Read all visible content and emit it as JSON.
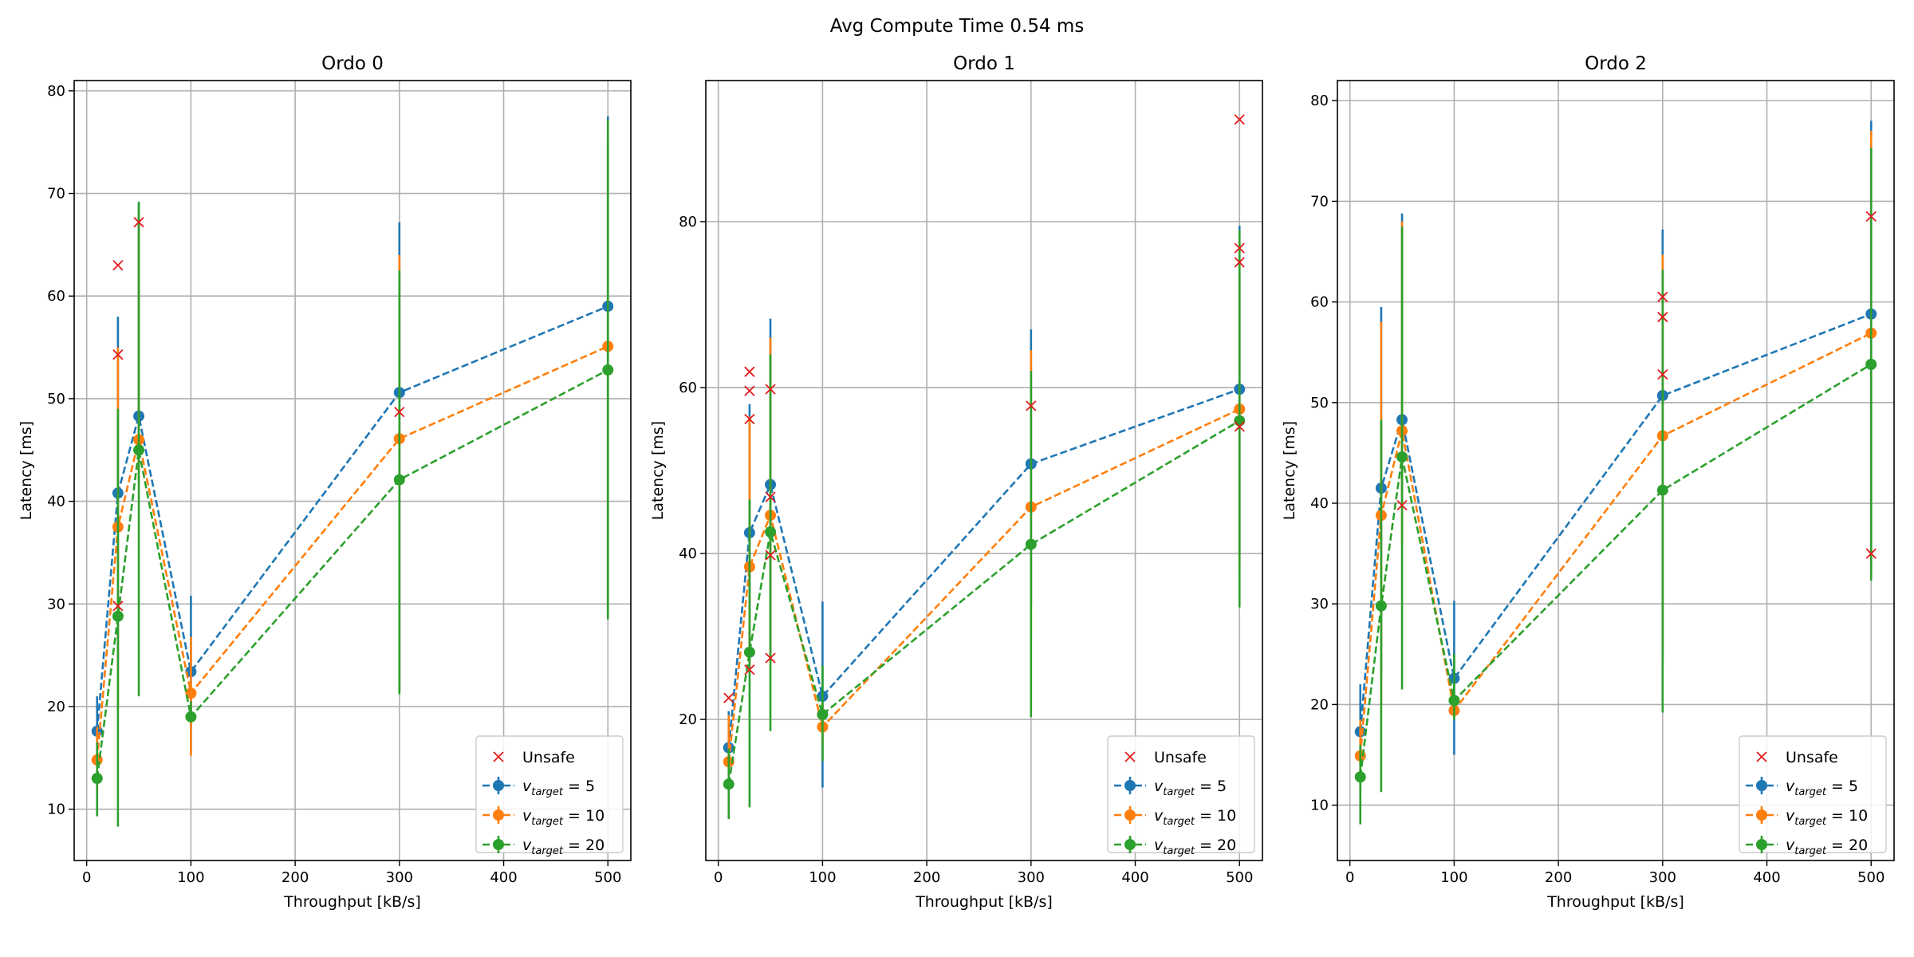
{
  "figure": {
    "suptitle": "Avg Compute Time 0.54 ms"
  },
  "legend": {
    "unsafe_label": "Unsafe",
    "series_prefix": "v",
    "series_subscript": "target",
    "series_eq": " = "
  },
  "colors": {
    "v5": "#1f77b4",
    "v10": "#ff7f0e",
    "v20": "#2ca02c",
    "unsafe": "#e31a1c"
  },
  "chart_data": [
    {
      "type": "line",
      "title": "Ordo 0",
      "xlabel": "Throughput [kB/s]",
      "ylabel": "Latency [ms]",
      "xlim": [
        -12,
        522
      ],
      "ylim": [
        5,
        81
      ],
      "xticks": [
        0,
        100,
        200,
        300,
        400,
        500
      ],
      "yticks": [
        10,
        20,
        30,
        40,
        50,
        60,
        70,
        80
      ],
      "grid": true,
      "legend_position": "lower-right",
      "x": [
        10,
        30,
        50,
        100,
        300,
        500
      ],
      "series": [
        {
          "name": "v_target = 5",
          "color": "#1f77b4",
          "values": [
            17.6,
            40.8,
            48.3,
            23.4,
            50.6,
            59.0
          ],
          "err_lo": [
            15.0,
            23.5,
            44.0,
            15.5,
            21.5,
            29.0
          ],
          "err_hi": [
            21.0,
            58.0,
            69.0,
            30.8,
            67.2,
            77.5
          ]
        },
        {
          "name": "v_target = 10",
          "color": "#ff7f0e",
          "values": [
            14.8,
            37.5,
            46.0,
            21.3,
            46.1,
            55.1
          ],
          "err_lo": [
            12.0,
            20.0,
            42.0,
            15.2,
            21.5,
            29.0
          ],
          "err_hi": [
            18.0,
            55.0,
            68.0,
            26.8,
            64.0,
            75.0
          ]
        },
        {
          "name": "v_target = 20",
          "color": "#2ca02c",
          "values": [
            13.0,
            28.8,
            45.0,
            19.0,
            42.1,
            52.8
          ],
          "err_lo": [
            9.3,
            8.3,
            21.0,
            18.5,
            21.2,
            28.5
          ],
          "err_hi": [
            16.5,
            49.0,
            69.2,
            20.5,
            62.5,
            77.2
          ]
        }
      ],
      "unsafe": {
        "name": "Unsafe",
        "x": [
          30,
          30,
          30,
          50,
          300
        ],
        "y": [
          63.0,
          54.3,
          29.8,
          67.2,
          48.7
        ]
      }
    },
    {
      "type": "line",
      "title": "Ordo 1",
      "xlabel": "Throughput [kB/s]",
      "ylabel": "Latency [ms]",
      "xlim": [
        -12,
        522
      ],
      "ylim": [
        3,
        97
      ],
      "xticks": [
        0,
        100,
        200,
        300,
        400,
        500
      ],
      "yticks": [
        20,
        40,
        60,
        80
      ],
      "grid": true,
      "legend_position": "lower-right",
      "x": [
        10,
        30,
        50,
        100,
        300,
        500
      ],
      "series": [
        {
          "name": "v_target = 5",
          "color": "#1f77b4",
          "values": [
            16.6,
            42.5,
            48.3,
            22.8,
            50.8,
            59.8
          ],
          "err_lo": [
            14.0,
            27.0,
            29.0,
            11.8,
            34.0,
            40.0
          ],
          "err_hi": [
            21.0,
            58.0,
            68.3,
            34.2,
            67.0,
            79.5
          ]
        },
        {
          "name": "v_target = 10",
          "color": "#ff7f0e",
          "values": [
            14.9,
            38.4,
            44.6,
            19.1,
            45.6,
            57.4
          ],
          "err_lo": [
            13.0,
            26.0,
            27.0,
            17.0,
            30.0,
            38.0
          ],
          "err_hi": [
            20.5,
            56.5,
            66.0,
            22.0,
            64.5,
            78.0
          ]
        },
        {
          "name": "v_target = 20",
          "color": "#2ca02c",
          "values": [
            12.2,
            28.1,
            42.6,
            20.6,
            41.1,
            56.0
          ],
          "err_lo": [
            8.0,
            9.4,
            18.6,
            15.0,
            20.3,
            33.5
          ],
          "err_hi": [
            16.5,
            46.5,
            64.0,
            26.5,
            62.0,
            79.0
          ]
        }
      ],
      "unsafe": {
        "name": "Unsafe",
        "x": [
          10,
          30,
          30,
          30,
          30,
          50,
          50,
          50,
          50,
          300,
          500,
          500,
          500,
          500
        ],
        "y": [
          22.6,
          61.9,
          59.6,
          56.2,
          26.0,
          59.8,
          46.8,
          39.8,
          27.4,
          57.8,
          92.3,
          76.8,
          75.1,
          55.3
        ]
      }
    },
    {
      "type": "line",
      "title": "Ordo 2",
      "xlabel": "Throughput [kB/s]",
      "ylabel": "Latency [ms]",
      "xlim": [
        -12,
        522
      ],
      "ylim": [
        4.5,
        82
      ],
      "xticks": [
        0,
        100,
        200,
        300,
        400,
        500
      ],
      "yticks": [
        10,
        20,
        30,
        40,
        50,
        60,
        70,
        80
      ],
      "grid": true,
      "legend_position": "lower-right",
      "x": [
        10,
        30,
        50,
        100,
        300,
        500
      ],
      "series": [
        {
          "name": "v_target = 5",
          "color": "#1f77b4",
          "values": [
            17.3,
            41.5,
            48.3,
            22.6,
            50.7,
            58.8
          ],
          "err_lo": [
            14.0,
            23.0,
            40.0,
            15.0,
            24.0,
            33.0
          ],
          "err_hi": [
            22.0,
            59.5,
            68.8,
            30.3,
            67.2,
            78.0
          ]
        },
        {
          "name": "v_target = 10",
          "color": "#ff7f0e",
          "values": [
            14.9,
            38.8,
            47.2,
            19.4,
            46.7,
            56.9
          ],
          "err_lo": [
            11.5,
            20.0,
            36.0,
            18.5,
            25.0,
            33.0
          ],
          "err_hi": [
            18.5,
            58.0,
            68.0,
            20.5,
            64.7,
            77.0
          ]
        },
        {
          "name": "v_target = 20",
          "color": "#2ca02c",
          "values": [
            12.8,
            29.8,
            44.6,
            20.4,
            41.3,
            53.8
          ],
          "err_lo": [
            8.1,
            11.3,
            21.5,
            18.5,
            19.2,
            32.3
          ],
          "err_hi": [
            16.0,
            48.3,
            67.5,
            25.0,
            63.2,
            75.3
          ]
        }
      ],
      "unsafe": {
        "name": "Unsafe",
        "x": [
          50,
          300,
          300,
          300,
          500,
          500
        ],
        "y": [
          39.8,
          60.5,
          58.5,
          52.8,
          68.5,
          35.0
        ]
      }
    }
  ]
}
